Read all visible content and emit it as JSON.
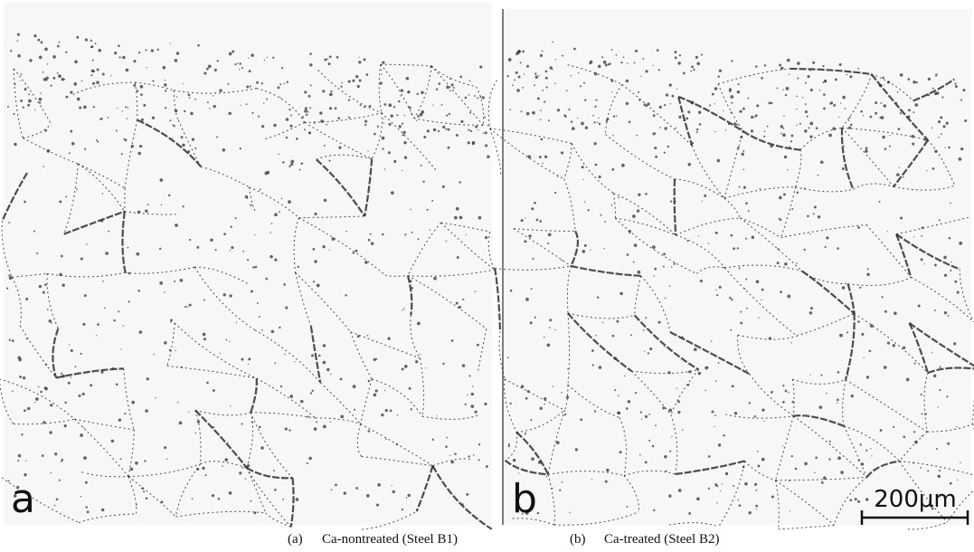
{
  "figure": {
    "panels": [
      {
        "letter": "a",
        "caption_label": "(a)",
        "caption": "Ca-nontreated (Steel B1)"
      },
      {
        "letter": "b",
        "caption_label": "(b)",
        "caption": "Ca-treated (Steel B2)"
      }
    ],
    "scale_bar": "200μm"
  }
}
